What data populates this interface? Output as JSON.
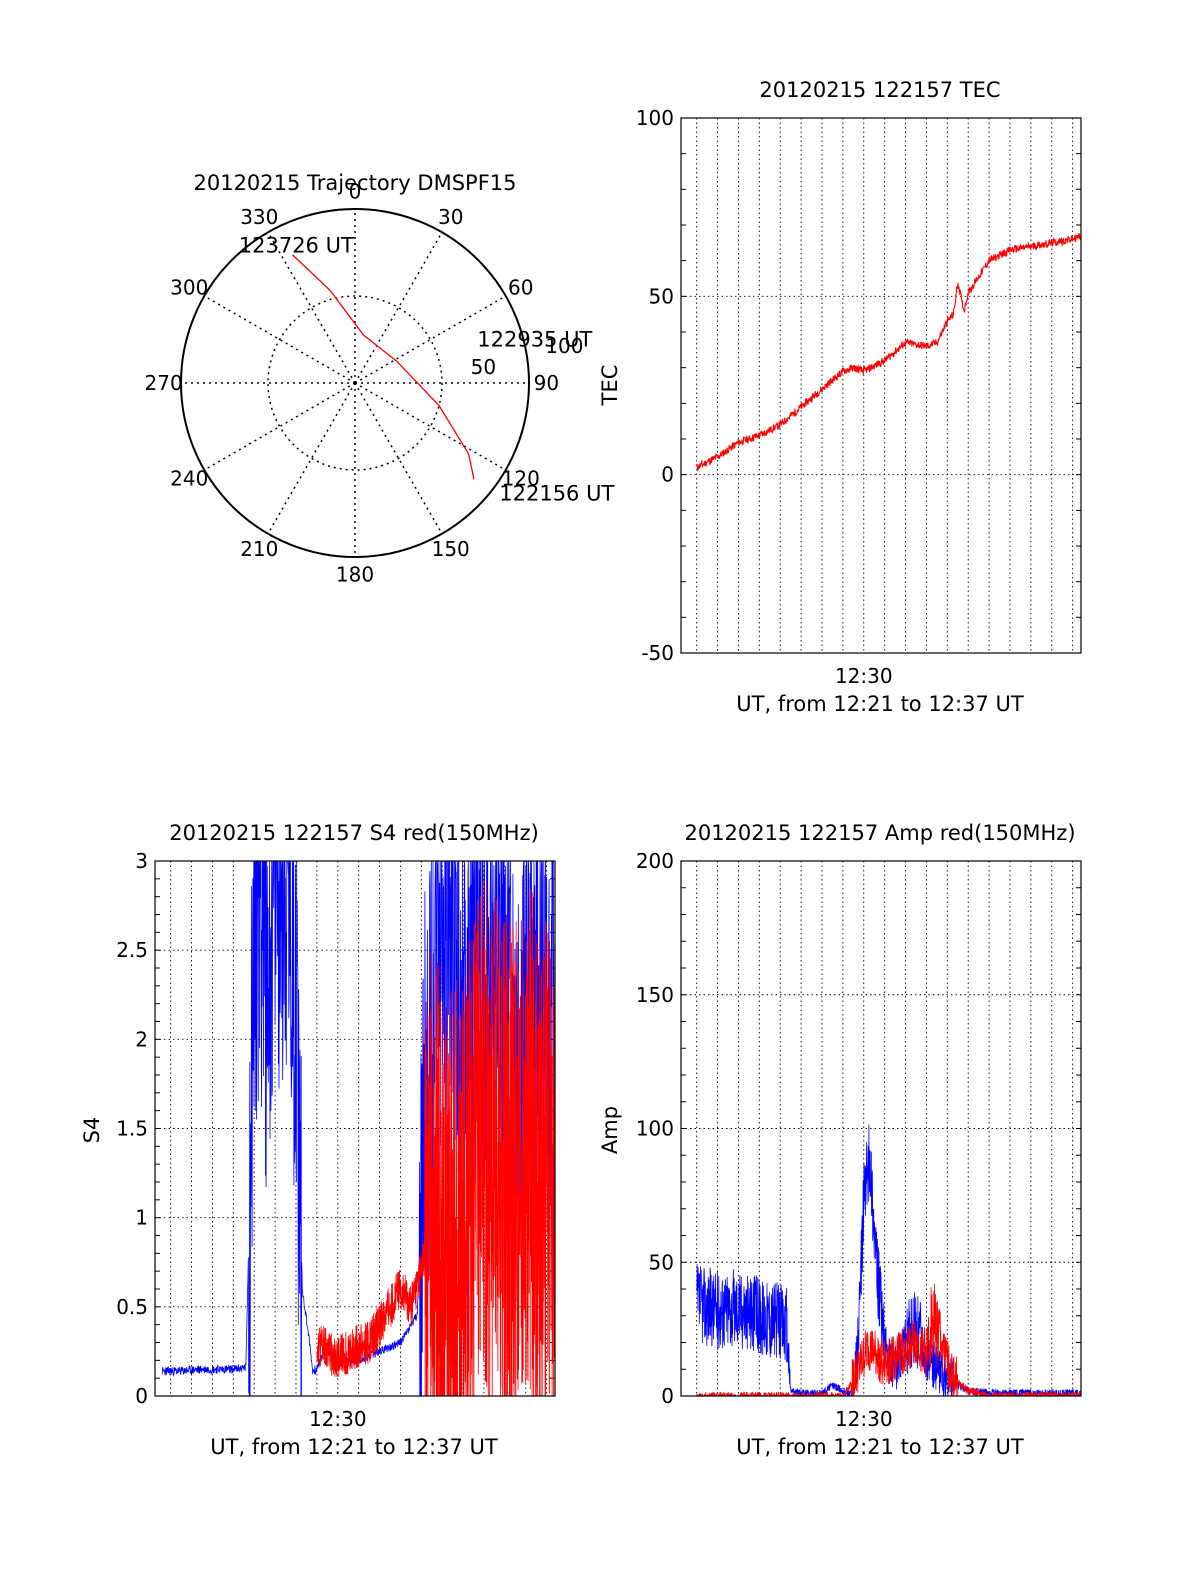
{
  "chart_data": [
    {
      "id": "trajectory",
      "type": "polar",
      "title": "20120215 Trajectory DMSPF15",
      "angle_ticks": [
        {
          "angle": 0,
          "label": "0"
        },
        {
          "angle": 30,
          "label": "30"
        },
        {
          "angle": 60,
          "label": "60"
        },
        {
          "angle": 90,
          "label": "90"
        },
        {
          "angle": 120,
          "label": "120"
        },
        {
          "angle": 150,
          "label": "150"
        },
        {
          "angle": 180,
          "label": "180"
        },
        {
          "angle": 210,
          "label": "210"
        },
        {
          "angle": 240,
          "label": "240"
        },
        {
          "angle": 270,
          "label": "270"
        },
        {
          "angle": 300,
          "label": "300"
        },
        {
          "angle": 330,
          "label": "330"
        }
      ],
      "radial_tick_labels": [
        {
          "value": 50,
          "label": "50"
        },
        {
          "value": 100,
          "label": "100"
        }
      ],
      "rmax": 100,
      "grid_radius": 50,
      "track_color": "#ff0000",
      "track": [
        {
          "az": 334,
          "r": 82
        },
        {
          "az": 345,
          "r": 55
        },
        {
          "az": 10,
          "r": 28
        },
        {
          "az": 62,
          "r": 27
        },
        {
          "az": 105,
          "r": 50
        },
        {
          "az": 122,
          "r": 77
        },
        {
          "az": 129,
          "r": 88
        }
      ],
      "annotations": [
        {
          "label": "123726 UT",
          "az": 342,
          "r": 86
        },
        {
          "label": "122935 UT",
          "az": 80,
          "r": 48
        },
        {
          "label": "122156 UT",
          "az": 124,
          "r": 100
        }
      ]
    },
    {
      "id": "tec",
      "type": "line",
      "title": "20120215 122157 TEC",
      "xlabel": "UT, from 12:21 to 12:37 UT",
      "ylabel": "TEC",
      "x_tick_label": "12:30",
      "x_tick_minute": 30,
      "xlim": [
        21.25,
        40.4
      ],
      "ylim": [
        -50,
        100
      ],
      "yticks": [
        -50,
        0,
        50,
        100
      ],
      "grid_minutes": [
        22,
        23,
        24,
        25,
        26,
        27,
        28,
        29,
        30,
        31,
        32,
        33,
        34,
        35,
        36,
        37,
        38,
        39,
        40
      ],
      "series": [
        {
          "color": "#ff0000",
          "x": [
            22.0,
            23.0,
            24.0,
            25.0,
            26.0,
            27.0,
            28.0,
            29.0,
            29.5,
            30.0,
            31.0,
            32.0,
            33.0,
            33.5,
            34.0,
            34.3,
            34.5,
            34.8,
            35.0,
            36.0,
            37.0,
            38.0,
            39.0,
            40.0,
            40.4
          ],
          "y": [
            2,
            5,
            9,
            11,
            14,
            19,
            24,
            29,
            30,
            29,
            32,
            37,
            36,
            37,
            43,
            45,
            54,
            46,
            51,
            60,
            63,
            64,
            65,
            66,
            67
          ]
        }
      ]
    },
    {
      "id": "s4",
      "type": "line",
      "title": "20120215 122157 S4 red(150MHz)",
      "xlabel": "UT, from 12:21 to 12:37 UT",
      "ylabel": "S4",
      "x_tick_label": "12:30",
      "x_tick_minute": 30,
      "xlim": [
        21.25,
        40.4
      ],
      "ylim": [
        0,
        3
      ],
      "yticks": [
        0,
        0.5,
        1,
        1.5,
        2,
        2.5,
        3
      ],
      "ytick_labels": [
        "0",
        "0.5",
        "1",
        "1.5",
        "2",
        "2.5",
        "3"
      ],
      "grid_minutes": [
        22,
        23,
        24,
        25,
        26,
        27,
        28,
        29,
        30,
        31,
        32,
        33,
        34,
        35,
        36,
        37,
        38,
        39,
        40
      ],
      "series": [
        {
          "color": "#0000ff",
          "x": [
            21.6,
            22.5,
            23.5,
            25.0,
            25.6,
            25.8,
            26.0,
            26.3,
            26.6,
            27.0,
            27.5,
            28.0,
            28.3,
            28.6,
            28.8,
            29.0,
            29.5,
            30.0,
            31.0,
            32.0,
            33.0,
            33.8,
            34.2,
            34.6,
            35.0,
            35.5,
            36.0,
            37.0,
            38.0,
            39.0,
            40.0,
            40.4
          ],
          "y": [
            0.14,
            0.14,
            0.15,
            0.15,
            0.16,
            1.2,
            2.7,
            3.0,
            2.4,
            3.0,
            3.0,
            2.3,
            0.6,
            0.35,
            0.14,
            0.15,
            0.3,
            0.18,
            0.2,
            0.25,
            0.3,
            0.45,
            1.7,
            2.3,
            2.6,
            2.8,
            2.2,
            2.4,
            2.3,
            2.1,
            2.2,
            2.0
          ]
        },
        {
          "color": "#ff0000",
          "x": [
            29.0,
            29.5,
            30.0,
            31.0,
            31.5,
            32.0,
            32.5,
            33.0,
            33.5,
            34.0,
            34.5,
            35.0,
            35.5,
            36.0,
            37.0,
            38.0,
            39.0,
            40.0,
            40.4
          ],
          "y": [
            0.3,
            0.25,
            0.22,
            0.28,
            0.3,
            0.4,
            0.5,
            0.6,
            0.5,
            0.7,
            1.0,
            0.9,
            0.8,
            0.9,
            1.5,
            1.2,
            1.4,
            1.2,
            1.1
          ]
        }
      ]
    },
    {
      "id": "amp",
      "type": "line",
      "title": "20120215 122157 Amp red(150MHz)",
      "xlabel": "UT, from 12:21 to 12:37 UT",
      "ylabel": "Amp",
      "x_tick_label": "12:30",
      "x_tick_minute": 30,
      "xlim": [
        21.25,
        40.4
      ],
      "ylim": [
        0,
        200
      ],
      "yticks": [
        0,
        50,
        100,
        150,
        200
      ],
      "grid_minutes": [
        22,
        23,
        24,
        25,
        26,
        27,
        28,
        29,
        30,
        31,
        32,
        33,
        34,
        35,
        36,
        37,
        38,
        39,
        40
      ],
      "series": [
        {
          "color": "#0000ff",
          "x": [
            22.0,
            23.0,
            24.0,
            25.0,
            26.0,
            26.3,
            26.5,
            27.0,
            28.0,
            28.5,
            29.0,
            29.3,
            29.5,
            29.8,
            30.0,
            30.3,
            30.6,
            31.0,
            31.5,
            32.0,
            32.5,
            33.0,
            33.5,
            34.0,
            35.0,
            36.0,
            37.0,
            38.0,
            39.0,
            40.0,
            40.4
          ],
          "y": [
            35,
            32,
            33,
            30,
            28,
            26,
            2,
            1,
            1,
            4,
            2,
            1,
            1,
            30,
            75,
            90,
            50,
            18,
            10,
            20,
            25,
            15,
            10,
            6,
            2,
            1,
            1,
            1,
            1,
            1,
            1
          ]
        },
        {
          "color": "#ff0000",
          "x": [
            22.0,
            26.0,
            27.0,
            28.0,
            29.0,
            29.8,
            30.2,
            30.6,
            31.0,
            31.5,
            32.0,
            32.5,
            33.0,
            33.3,
            33.6,
            34.0,
            34.5,
            35.0,
            36.0,
            37.0,
            40.4
          ],
          "y": [
            0,
            0,
            0,
            0,
            0,
            10,
            18,
            15,
            12,
            14,
            18,
            20,
            16,
            30,
            22,
            12,
            5,
            2,
            0,
            0,
            0
          ]
        }
      ]
    }
  ]
}
